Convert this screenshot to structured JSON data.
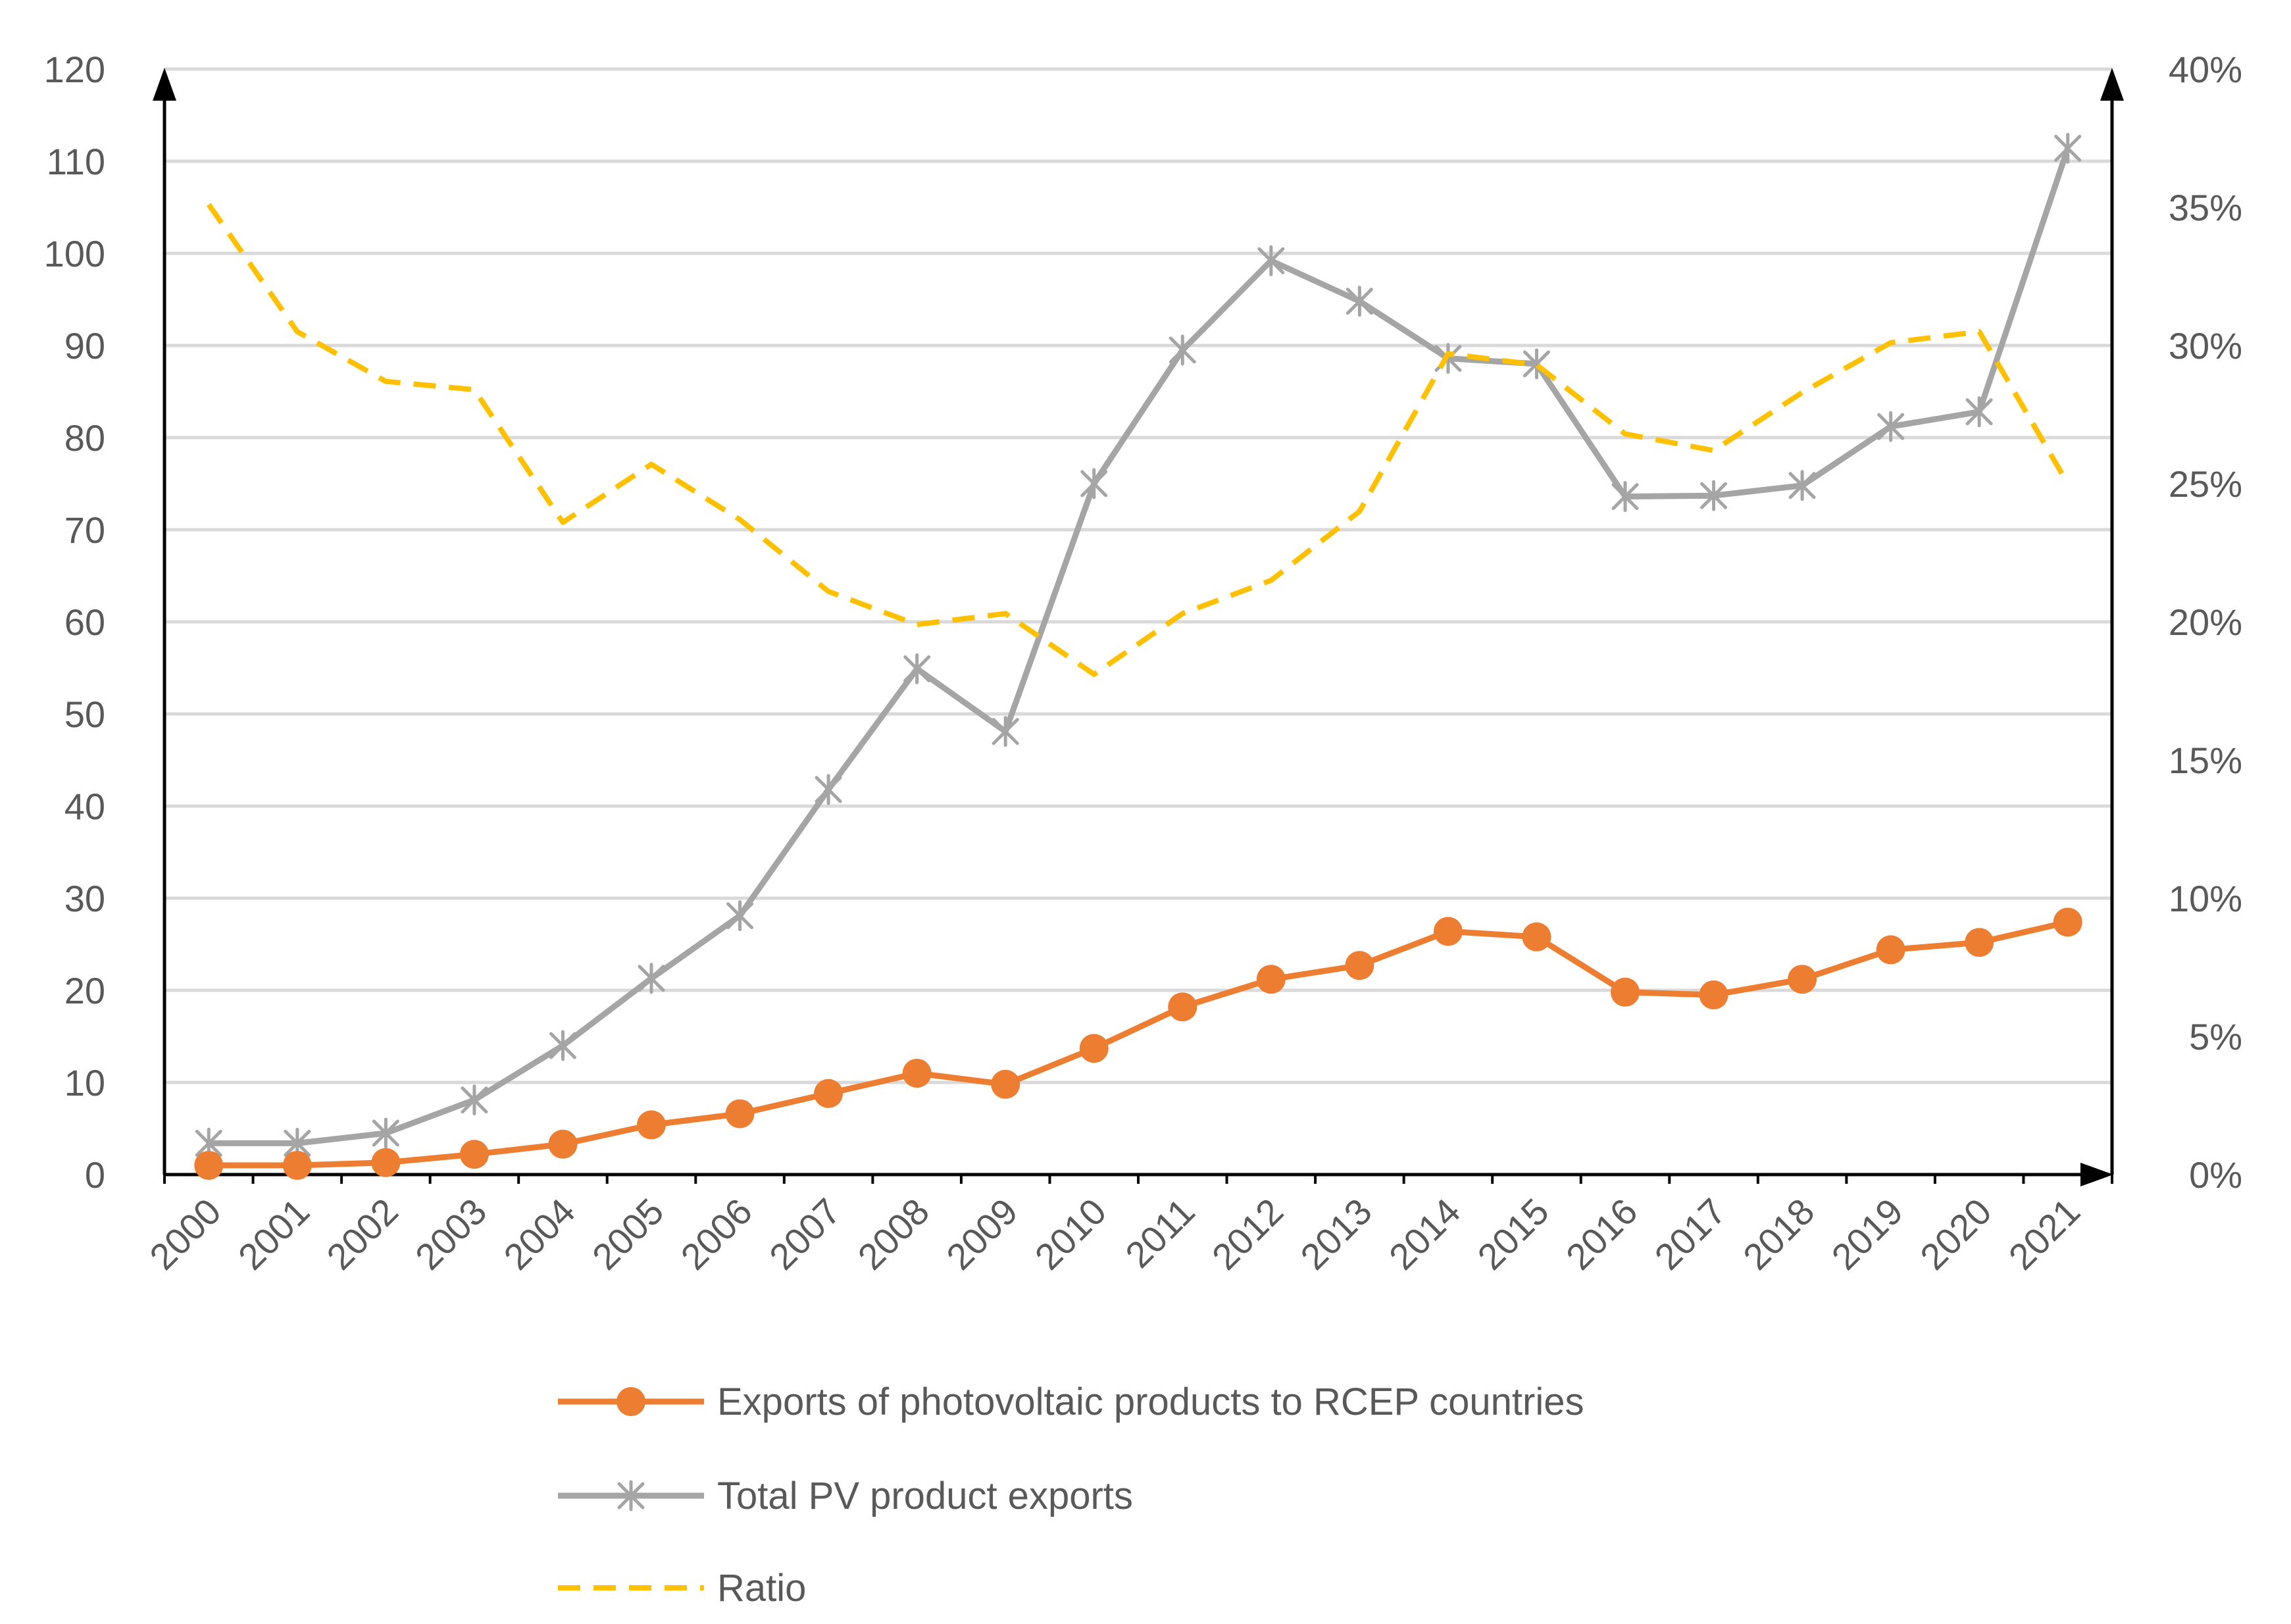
{
  "chart_data": {
    "type": "line",
    "title": "",
    "xlabel": "",
    "ylabel": "",
    "y2label": "",
    "categories": [
      "2000",
      "2001",
      "2002",
      "2003",
      "2004",
      "2005",
      "2006",
      "2007",
      "2008",
      "2009",
      "2010",
      "2011",
      "2012",
      "2013",
      "2014",
      "2015",
      "2016",
      "2017",
      "2018",
      "2019",
      "2020",
      "2021"
    ],
    "ylim": [
      0,
      120
    ],
    "yticks": [
      0,
      10,
      20,
      30,
      40,
      50,
      60,
      70,
      80,
      90,
      100,
      110,
      120
    ],
    "y2lim": [
      0,
      0.4
    ],
    "y2ticks": [
      "0%",
      "5%",
      "10%",
      "15%",
      "20%",
      "25%",
      "30%",
      "35%",
      "40%"
    ],
    "grid": true,
    "legend_position": "bottom",
    "series": [
      {
        "name": "Exports of photovoltaic products to RCEP countries",
        "axis": "left",
        "color": "#ED7D31",
        "marker": "circle",
        "style": "solid",
        "values": [
          1.0,
          1.0,
          1.3,
          2.2,
          3.3,
          5.4,
          6.6,
          8.8,
          11.0,
          9.8,
          13.7,
          18.2,
          21.2,
          22.7,
          26.4,
          25.8,
          19.8,
          19.5,
          21.2,
          24.4,
          25.2,
          27.4
        ]
      },
      {
        "name": "Total PV product exports",
        "axis": "left",
        "color": "#A5A5A5",
        "marker": "asterisk",
        "style": "solid",
        "values": [
          3.4,
          3.4,
          4.5,
          8.1,
          14.0,
          21.3,
          28.1,
          41.8,
          54.9,
          48.1,
          75.0,
          89.5,
          99.2,
          94.8,
          88.6,
          88.0,
          73.6,
          73.7,
          74.8,
          81.2,
          82.8,
          111.4
        ]
      },
      {
        "name": "Ratio",
        "axis": "right",
        "color": "#FFC000",
        "marker": "none",
        "style": "dashed",
        "values": [
          0.351,
          0.305,
          0.287,
          0.284,
          0.236,
          0.257,
          0.237,
          0.211,
          0.199,
          0.203,
          0.181,
          0.203,
          0.215,
          0.24,
          0.297,
          0.293,
          0.268,
          0.262,
          0.283,
          0.301,
          0.305,
          0.25
        ]
      }
    ]
  }
}
